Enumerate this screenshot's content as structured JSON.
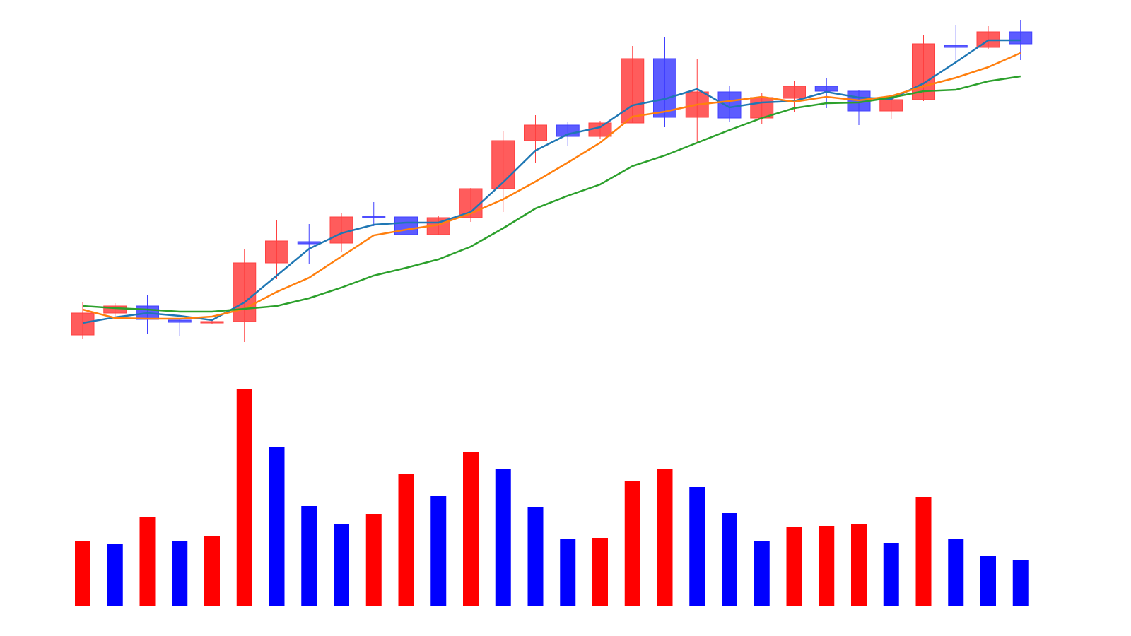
{
  "chart_data": [
    {
      "type": "candlestick",
      "up_color": "#ff4040",
      "down_color": "#4040ff",
      "open": [
        5.2,
        11.4,
        13.4,
        9.4,
        8.6,
        9,
        25.6,
        31.6,
        31.2,
        38.8,
        38.6,
        33.6,
        38.4,
        46.6,
        60.2,
        64.6,
        61.4,
        65.2,
        83.4,
        66.8,
        74,
        66.6,
        72.2,
        75.6,
        74.2,
        68.6,
        71.8,
        87.2,
        86.6,
        91
      ],
      "close": [
        11.4,
        13.4,
        9.6,
        8.8,
        9,
        25.6,
        31.8,
        31,
        38.6,
        38.4,
        33.6,
        38.4,
        46.6,
        60.2,
        64.6,
        61.4,
        65.2,
        83.4,
        66.8,
        74,
        66.6,
        72.4,
        75.6,
        74.2,
        68.6,
        71.8,
        87.6,
        86.6,
        91,
        87.6
      ],
      "high": [
        14.6,
        14.2,
        16.6,
        10,
        9.4,
        29.4,
        37.8,
        36.6,
        39.8,
        42.8,
        39.8,
        39,
        46.8,
        63,
        67.4,
        65.4,
        65.8,
        87,
        89.4,
        83.4,
        75.8,
        73.8,
        77.2,
        78,
        74.6,
        72.6,
        90,
        93,
        92.6,
        94.4
      ],
      "low": [
        4,
        10.6,
        5.4,
        4.8,
        8.4,
        3.2,
        21,
        25.4,
        28.6,
        36,
        31.4,
        33.4,
        37.2,
        40,
        53.8,
        58.8,
        60.8,
        65.2,
        64,
        59.4,
        65.6,
        65,
        68.4,
        69.4,
        64.6,
        66.4,
        71.4,
        83,
        86,
        83
      ],
      "series": [
        {
          "color": "#1f77b4",
          "values": [
            8.6,
            10.2,
            11.4,
            10.6,
            9.4,
            14.4,
            22,
            29.6,
            34,
            36.4,
            37,
            37,
            40,
            48.4,
            57.4,
            62,
            64,
            70.2,
            72,
            74.8,
            69.6,
            71,
            71.4,
            74,
            72.4,
            72,
            76.4,
            82.4,
            88.6,
            88.6
          ]
        },
        {
          "color": "#ff7f0e",
          "values": [
            12.4,
            10,
            9.8,
            9.8,
            10.4,
            12.6,
            17.4,
            21.4,
            27.4,
            33.4,
            35,
            36.4,
            39.6,
            43.6,
            48.6,
            54,
            59.6,
            67,
            68.4,
            70.4,
            71.4,
            72.6,
            71.2,
            72.6,
            71.6,
            72.8,
            75.6,
            78,
            81,
            85
          ]
        },
        {
          "color": "#2ca02c",
          "values": [
            13.4,
            12.8,
            12.4,
            11.8,
            11.8,
            12.6,
            13.4,
            15.6,
            18.6,
            22,
            24.2,
            26.6,
            30.2,
            35.4,
            41,
            44.6,
            47.8,
            53,
            56,
            59.6,
            63.2,
            66.6,
            69.4,
            70.8,
            71,
            72.4,
            74.2,
            74.6,
            77,
            78.4
          ]
        }
      ],
      "ylim": [
        0,
        100
      ]
    },
    {
      "type": "bar",
      "values": [
        92,
        88,
        126,
        92,
        99,
        308,
        226,
        142,
        117,
        130,
        187,
        156,
        219,
        194,
        140,
        95,
        97,
        177,
        195,
        169,
        132,
        92,
        112,
        113,
        116,
        89,
        155,
        95,
        71,
        65
      ],
      "colors": [
        "#ff0000",
        "#0000ff",
        "#ff0000",
        "#0000ff",
        "#ff0000",
        "#ff0000",
        "#0000ff",
        "#0000ff",
        "#0000ff",
        "#ff0000",
        "#ff0000",
        "#0000ff",
        "#ff0000",
        "#0000ff",
        "#0000ff",
        "#0000ff",
        "#ff0000",
        "#ff0000",
        "#ff0000",
        "#0000ff",
        "#0000ff",
        "#0000ff",
        "#ff0000",
        "#ff0000",
        "#ff0000",
        "#0000ff",
        "#ff0000",
        "#0000ff",
        "#0000ff",
        "#0000ff"
      ],
      "ylim": [
        0,
        320
      ]
    }
  ]
}
